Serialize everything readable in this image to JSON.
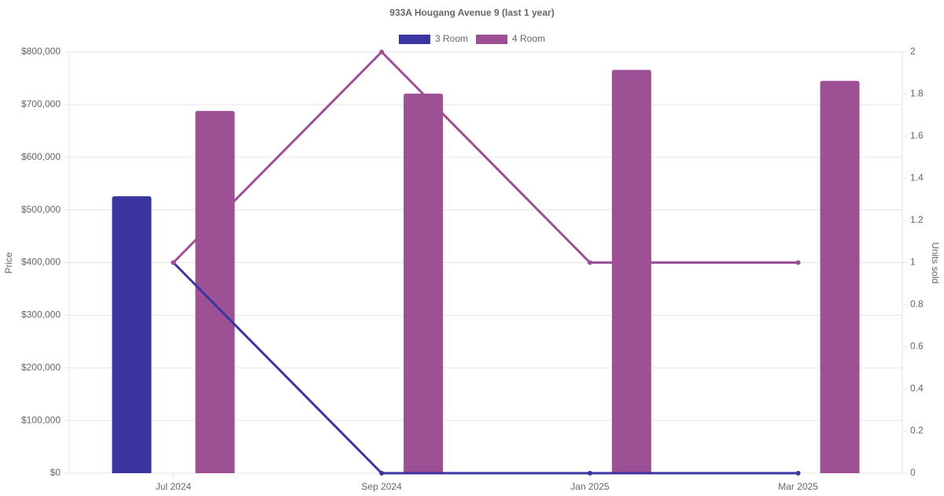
{
  "chart_data": {
    "type": "bar-line",
    "title": "933A Hougang Avenue 9 (last 1 year)",
    "y_label": "Price",
    "y2_label": "Units sold",
    "categories": [
      "Jul 2024",
      "Sep 2024",
      "Jan 2025",
      "Mar 2025"
    ],
    "series": [
      {
        "name": "3 Room",
        "color": "#3a35a0",
        "values": [
          526000,
          null,
          null,
          null
        ],
        "units": [
          1,
          0,
          0,
          0
        ]
      },
      {
        "name": "4 Room",
        "color": "#9e5094",
        "values": [
          688000,
          721000,
          766000,
          745000
        ],
        "units": [
          1,
          2,
          1,
          1
        ]
      }
    ],
    "ylim": [
      0,
      800000
    ],
    "yticks": [
      {
        "value": 0,
        "label": "$0"
      },
      {
        "value": 100000,
        "label": "$100,000"
      },
      {
        "value": 200000,
        "label": "$200,000"
      },
      {
        "value": 300000,
        "label": "$300,000"
      },
      {
        "value": 400000,
        "label": "$400,000"
      },
      {
        "value": 500000,
        "label": "$500,000"
      },
      {
        "value": 600000,
        "label": "$600,000"
      },
      {
        "value": 700000,
        "label": "$700,000"
      },
      {
        "value": 800000,
        "label": "$800,000"
      }
    ],
    "y2lim": [
      0,
      2
    ],
    "y2ticks": [
      0,
      0.2,
      0.4,
      0.6,
      0.8,
      1,
      1.2,
      1.4,
      1.6,
      1.8,
      2
    ],
    "grid": true
  }
}
